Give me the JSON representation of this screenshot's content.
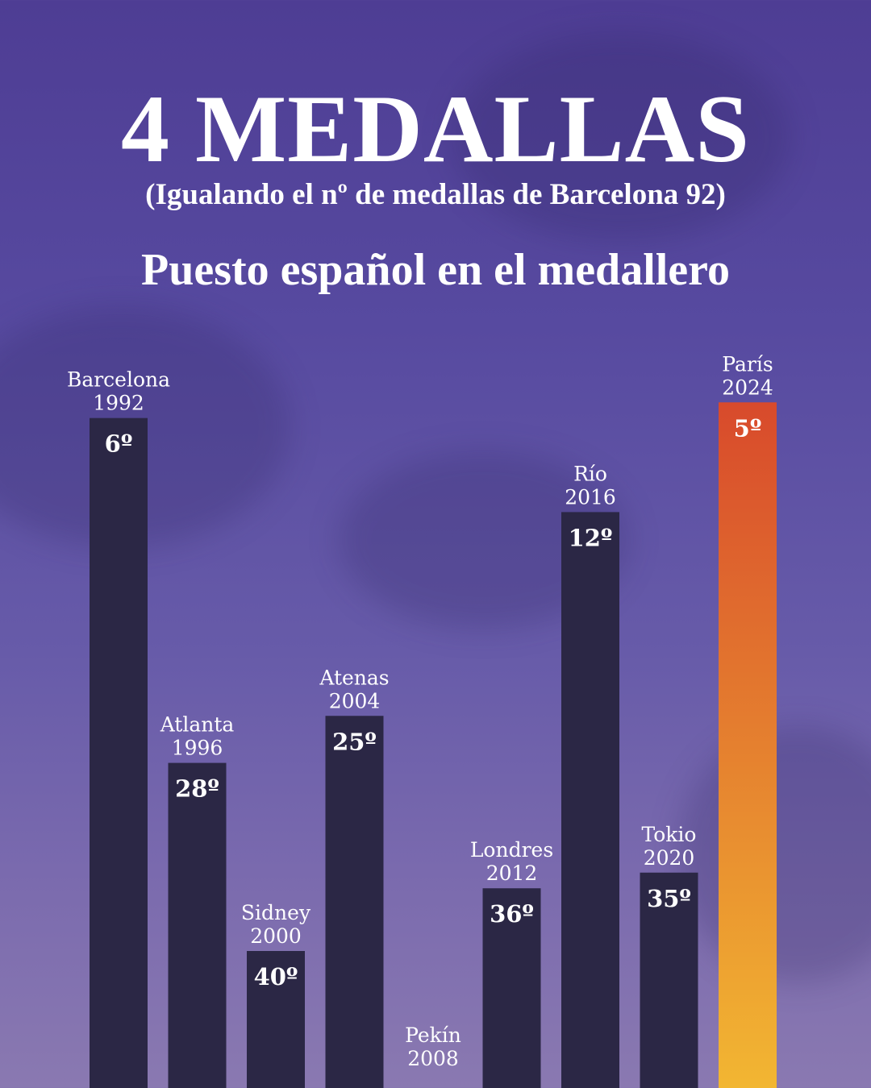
{
  "header": {
    "title": "4 MEDALLAS",
    "subtitle": "(Igualando el nº de medallas de Barcelona 92)",
    "section_title": "Puesto español en el medallero"
  },
  "colors": {
    "bar": "#2b2745",
    "highlight_top": "#d84a2c",
    "highlight_bottom": "#f2b632"
  },
  "chart_data": {
    "type": "bar",
    "title": "Puesto español en el medallero",
    "categories": [
      {
        "city": "Barcelona",
        "year": "1992"
      },
      {
        "city": "Atlanta",
        "year": "1996"
      },
      {
        "city": "Sidney",
        "year": "2000"
      },
      {
        "city": "Atenas",
        "year": "2004"
      },
      {
        "city": "Pekín",
        "year": "2008"
      },
      {
        "city": "Londres",
        "year": "2012"
      },
      {
        "city": "Río",
        "year": "2016"
      },
      {
        "city": "Tokio",
        "year": "2020"
      },
      {
        "city": "París",
        "year": "2024"
      }
    ],
    "values": [
      6,
      28,
      40,
      25,
      null,
      36,
      12,
      35,
      5
    ],
    "value_labels": [
      "6º",
      "28º",
      "40º",
      "25º",
      "",
      "36º",
      "12º",
      "35º",
      "5º"
    ],
    "highlight_index": 8,
    "y_axis": "inverted rank (1st at top)",
    "ylim": [
      0,
      47
    ],
    "grid": false,
    "legend": "none"
  }
}
